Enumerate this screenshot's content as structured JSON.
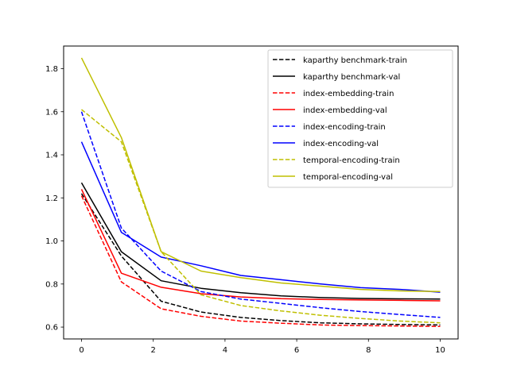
{
  "chart_data": {
    "type": "line",
    "title": "",
    "xlabel": "",
    "ylabel": "",
    "xlim": [
      -0.5,
      10.5
    ],
    "ylim": [
      0.545,
      1.905
    ],
    "x": [
      0,
      1.11,
      2.22,
      3.33,
      4.44,
      5.56,
      6.67,
      7.78,
      8.89,
      10
    ],
    "xticks": [
      0,
      2,
      4,
      6,
      8,
      10
    ],
    "yticks": [
      0.6,
      0.8,
      1.0,
      1.2,
      1.4,
      1.6,
      1.8
    ],
    "xtick_labels": [
      "0",
      "2",
      "4",
      "6",
      "8",
      "10"
    ],
    "ytick_labels": [
      "0.6",
      "0.8",
      "1.0",
      "1.2",
      "1.4",
      "1.6",
      "1.8"
    ],
    "grid": false,
    "legend_position": "top-right",
    "series": [
      {
        "name": "kaparthy benchmark-train",
        "color": "#000000",
        "dashed": true,
        "values": [
          1.22,
          0.93,
          0.72,
          0.67,
          0.645,
          0.63,
          0.62,
          0.615,
          0.612,
          0.61
        ]
      },
      {
        "name": "kaparthy benchmark-val",
        "color": "#000000",
        "dashed": false,
        "values": [
          1.27,
          0.95,
          0.815,
          0.78,
          0.76,
          0.745,
          0.737,
          0.733,
          0.731,
          0.73
        ]
      },
      {
        "name": "index-embedding-train",
        "color": "#ff0000",
        "dashed": true,
        "values": [
          1.21,
          0.81,
          0.685,
          0.65,
          0.628,
          0.618,
          0.61,
          0.607,
          0.605,
          0.603
        ]
      },
      {
        "name": "index-embedding-val",
        "color": "#ff0000",
        "dashed": false,
        "values": [
          1.24,
          0.85,
          0.785,
          0.755,
          0.74,
          0.732,
          0.728,
          0.726,
          0.724,
          0.722
        ]
      },
      {
        "name": "index-encoding-train",
        "color": "#0000ff",
        "dashed": true,
        "values": [
          1.6,
          1.06,
          0.86,
          0.765,
          0.73,
          0.71,
          0.69,
          0.672,
          0.658,
          0.645
        ]
      },
      {
        "name": "index-encoding-val",
        "color": "#0000ff",
        "dashed": false,
        "values": [
          1.46,
          1.04,
          0.925,
          0.885,
          0.84,
          0.82,
          0.8,
          0.783,
          0.775,
          0.762
        ]
      },
      {
        "name": "temporal-encoding-train",
        "color": "#bfbf00",
        "dashed": true,
        "values": [
          1.61,
          1.46,
          0.95,
          0.75,
          0.7,
          0.675,
          0.655,
          0.64,
          0.628,
          0.62
        ]
      },
      {
        "name": "temporal-encoding-val",
        "color": "#bfbf00",
        "dashed": false,
        "values": [
          1.85,
          1.48,
          0.95,
          0.86,
          0.83,
          0.805,
          0.79,
          0.775,
          0.768,
          0.765
        ]
      }
    ]
  }
}
